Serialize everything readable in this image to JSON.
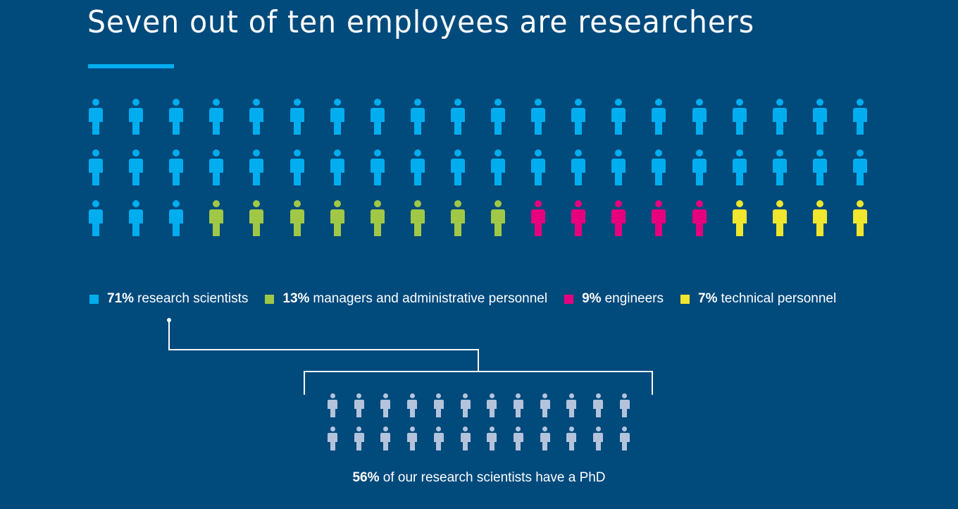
{
  "title": "Seven out of ten employees are researchers",
  "colors": {
    "background": "#004a7c",
    "accent": "#00aeef",
    "research_scientists": "#00aeef",
    "managers_admin": "#a0c846",
    "engineers": "#e6007e",
    "technical": "#f0e62d",
    "phd": "#b4c3dc",
    "connector": "#ffffff"
  },
  "legend": [
    {
      "pct": "71%",
      "label": "research scientists",
      "color": "#00aeef"
    },
    {
      "pct": "13%",
      "label": "managers and administrative personnel",
      "color": "#a0c846"
    },
    {
      "pct": "9%",
      "label": "engineers",
      "color": "#e6007e"
    },
    {
      "pct": "7%",
      "label": "technical personnel",
      "color": "#f0e62d"
    }
  ],
  "footnote": {
    "pct": "56%",
    "text": " of our research scientists have a PhD"
  },
  "chart_data": [
    {
      "type": "pictogram",
      "title": "Seven out of ten employees are researchers",
      "grid": {
        "rows": 3,
        "cols": 20,
        "unit": "1 icon = 1/60 of employees (approx.)"
      },
      "categories": [
        "research scientists",
        "managers and administrative personnel",
        "engineers",
        "technical personnel"
      ],
      "values": [
        71,
        13,
        9,
        7
      ],
      "unit": "%",
      "icon_counts": [
        43,
        8,
        5,
        4
      ],
      "row_layout": [
        [
          "research scientists x20"
        ],
        [
          "research scientists x20"
        ],
        [
          "research scientists x3",
          "managers and administrative personnel x8",
          "engineers x5",
          "technical personnel x4"
        ]
      ],
      "legend_position": "bottom"
    },
    {
      "type": "pictogram",
      "title": "56% of our research scientists have a PhD",
      "grid": {
        "rows": 2,
        "cols": 12
      },
      "categories": [
        "research scientists with PhD"
      ],
      "values": [
        56
      ],
      "unit": "%",
      "icon_counts": [
        24
      ],
      "linked_from": "research scientists"
    }
  ]
}
